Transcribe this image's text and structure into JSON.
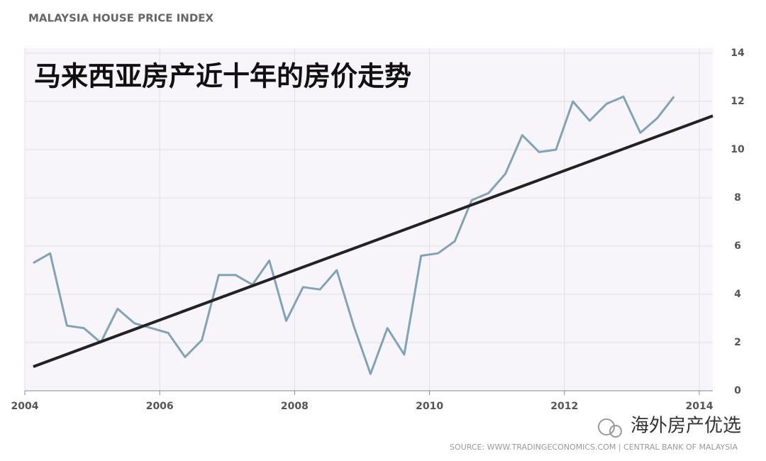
{
  "chart_data": {
    "type": "line",
    "header": "MALAYSIA HOUSE PRICE INDEX",
    "title": "马来西亚房产近十年的房价走势",
    "source": "SOURCE: WWW.TRADINGECONOMICS.COM | CENTRAL BANK OF MALAYSIA",
    "watermark": "海外房产优选",
    "xlim": [
      2004,
      2014.2
    ],
    "xticks": [
      2004,
      2006,
      2008,
      2010,
      2012,
      2014
    ],
    "ylim": [
      0,
      14
    ],
    "yticks": [
      0,
      2,
      4,
      6,
      8,
      10,
      12,
      14
    ],
    "grid": true,
    "series": [
      {
        "color": "#7fa3ba",
        "x": [
          2004.125,
          2004.375,
          2004.625,
          2004.875,
          2005.125,
          2005.375,
          2005.625,
          2005.875,
          2006.125,
          2006.375,
          2006.625,
          2006.875,
          2007.125,
          2007.375,
          2007.625,
          2007.875,
          2008.125,
          2008.375,
          2008.625,
          2008.875,
          2009.125,
          2009.375,
          2009.625,
          2009.875,
          2010.125,
          2010.375,
          2010.625,
          2010.875,
          2011.125,
          2011.375,
          2011.625,
          2011.875,
          2012.125,
          2012.375,
          2012.625,
          2012.875,
          2013.125,
          2013.375,
          2013.625
        ],
        "values": [
          5.3,
          5.7,
          2.7,
          2.6,
          2.0,
          3.4,
          2.8,
          2.6,
          2.4,
          1.4,
          2.1,
          4.8,
          4.8,
          4.4,
          5.4,
          2.9,
          4.3,
          4.2,
          5.0,
          2.7,
          0.7,
          2.6,
          1.5,
          5.6,
          5.7,
          6.2,
          7.9,
          8.2,
          9.0,
          10.6,
          9.9,
          10.0,
          12.0,
          11.2,
          11.9,
          12.2,
          10.7,
          11.3,
          12.2
        ]
      },
      {
        "color": "#222222",
        "x": [
          2004.125,
          2014.2
        ],
        "values": [
          1.0,
          11.4
        ]
      }
    ]
  }
}
